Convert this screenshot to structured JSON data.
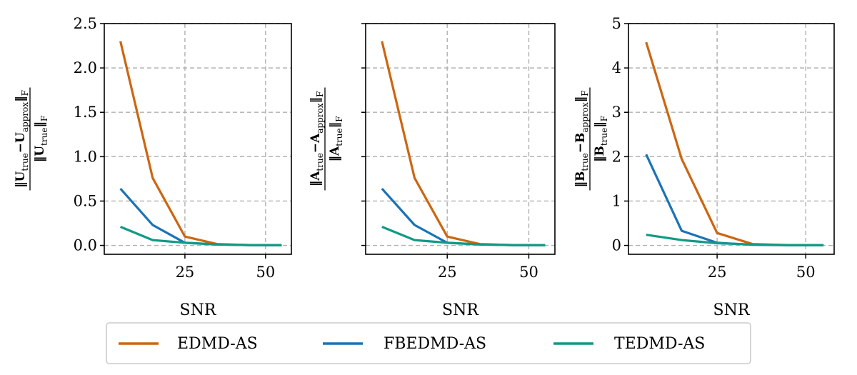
{
  "chart_data": [
    {
      "type": "line",
      "xlabel": "SNR",
      "ylabel": {
        "pre": "‖U",
        "sub1": "true",
        "mid": "−U",
        "sub2": "approx",
        "post": "‖",
        "sub3": "F",
        "den": "‖U",
        "densub": "true",
        "denpost": "‖",
        "densub2": "F"
      },
      "xlim": [
        0,
        58
      ],
      "ylim": [
        -0.1,
        2.5
      ],
      "xticks": [
        25,
        50
      ],
      "xtick_labels": [
        "25",
        "50"
      ],
      "yticks": [
        0.0,
        0.5,
        1.0,
        1.5,
        2.0,
        2.5
      ],
      "ytick_labels": [
        "0.0",
        "0.5",
        "1.0",
        "1.5",
        "2.0",
        "2.5"
      ],
      "show_ytick_labels": true,
      "grid": true,
      "x": [
        5,
        15,
        25,
        35,
        45,
        55
      ],
      "series": [
        {
          "name": "EDMD-AS",
          "color": "#cc6611",
          "values": [
            2.3,
            0.76,
            0.1,
            0.015,
            0.004,
            0.002
          ]
        },
        {
          "name": "FBEDMD-AS",
          "color": "#1a73b5",
          "values": [
            0.64,
            0.23,
            0.03,
            0.01,
            0.003,
            0.002
          ]
        },
        {
          "name": "TEDMD-AS",
          "color": "#119a85",
          "values": [
            0.21,
            0.06,
            0.03,
            0.012,
            0.004,
            0.002
          ]
        }
      ]
    },
    {
      "type": "line",
      "xlabel": "SNR",
      "ylabel": {
        "pre": "‖A",
        "sub1": "true",
        "mid": "−A",
        "sub2": "approx",
        "post": "‖",
        "sub3": "F",
        "den": "‖A",
        "densub": "true",
        "denpost": "‖",
        "densub2": "F"
      },
      "xlim": [
        0,
        58
      ],
      "ylim": [
        -0.1,
        2.5
      ],
      "xticks": [
        25,
        50
      ],
      "xtick_labels": [
        "25",
        "50"
      ],
      "yticks": [
        0.0,
        0.5,
        1.0,
        1.5,
        2.0,
        2.5
      ],
      "ytick_labels": [
        "",
        "",
        "",
        "",
        "",
        ""
      ],
      "show_ytick_labels": false,
      "grid": true,
      "x": [
        5,
        15,
        25,
        35,
        45,
        55
      ],
      "series": [
        {
          "name": "EDMD-AS",
          "color": "#cc6611",
          "values": [
            2.3,
            0.76,
            0.1,
            0.015,
            0.004,
            0.002
          ]
        },
        {
          "name": "FBEDMD-AS",
          "color": "#1a73b5",
          "values": [
            0.64,
            0.23,
            0.03,
            0.01,
            0.003,
            0.002
          ]
        },
        {
          "name": "TEDMD-AS",
          "color": "#119a85",
          "values": [
            0.21,
            0.06,
            0.03,
            0.012,
            0.004,
            0.002
          ]
        }
      ]
    },
    {
      "type": "line",
      "xlabel": "SNR",
      "ylabel": {
        "pre": "‖B",
        "sub1": "true",
        "mid": "−B",
        "sub2": "approx",
        "post": "‖",
        "sub3": "F",
        "den": "‖B",
        "densub": "true",
        "denpost": "‖",
        "densub2": "F"
      },
      "xlim": [
        0,
        58
      ],
      "ylim": [
        -0.2,
        5
      ],
      "xticks": [
        25,
        50
      ],
      "xtick_labels": [
        "25",
        "50"
      ],
      "yticks": [
        0,
        1,
        2,
        3,
        4,
        5
      ],
      "ytick_labels": [
        "0",
        "1",
        "2",
        "3",
        "4",
        "5"
      ],
      "show_ytick_labels": true,
      "grid": true,
      "x": [
        5,
        15,
        25,
        35,
        45,
        55
      ],
      "series": [
        {
          "name": "EDMD-AS",
          "color": "#cc6611",
          "values": [
            4.58,
            1.95,
            0.28,
            0.03,
            0.008,
            0.004
          ]
        },
        {
          "name": "FBEDMD-AS",
          "color": "#1a73b5",
          "values": [
            2.05,
            0.33,
            0.06,
            0.015,
            0.005,
            0.003
          ]
        },
        {
          "name": "TEDMD-AS",
          "color": "#119a85",
          "values": [
            0.24,
            0.12,
            0.05,
            0.02,
            0.006,
            0.003
          ]
        }
      ]
    }
  ],
  "legend": {
    "placement": "bottom-center",
    "entries": [
      {
        "label": "EDMD-AS",
        "color": "#cc6611"
      },
      {
        "label": "FBEDMD-AS",
        "color": "#1a73b5"
      },
      {
        "label": "TEDMD-AS",
        "color": "#119a85"
      }
    ]
  }
}
